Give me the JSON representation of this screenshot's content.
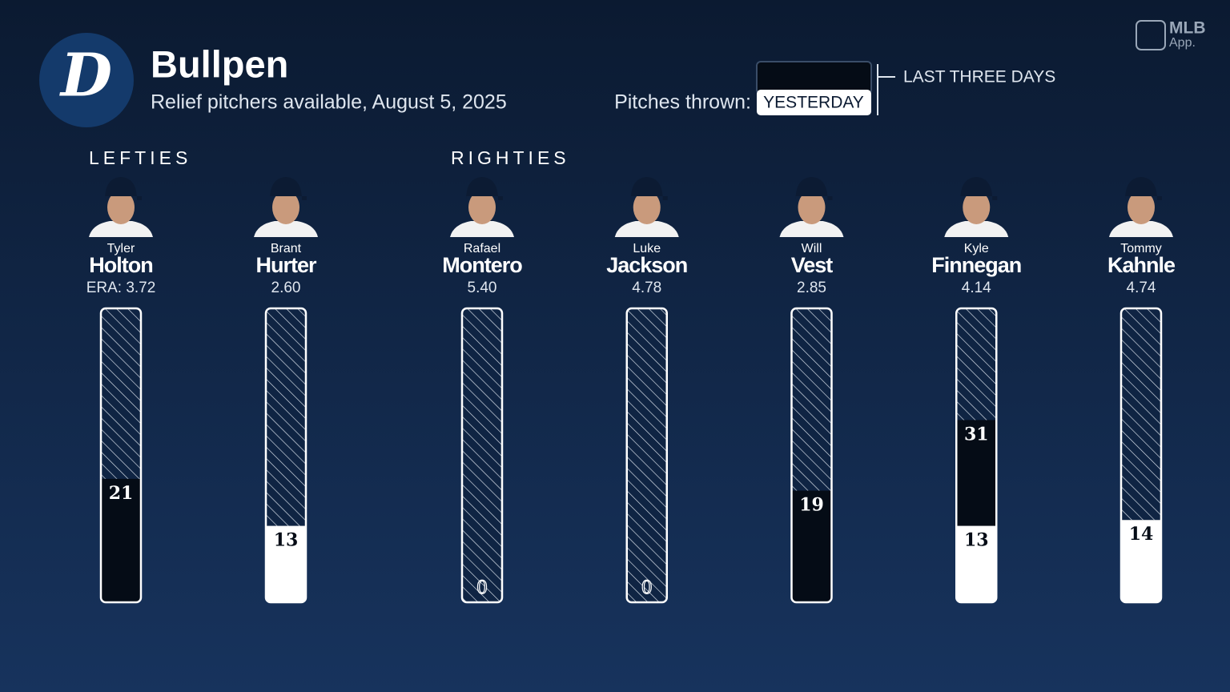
{
  "header": {
    "logo_letter": "D",
    "title": "Bullpen",
    "subtitle": "Relief pitchers available, August 5, 2025",
    "toggle_label": "Pitches thrown:",
    "brand": "MLB",
    "brand_sub": "App."
  },
  "chart_data": {
    "type": "bar",
    "era_label": "ERA:",
    "groups": [
      {
        "label": "LEFTIES",
        "first_names": [
          "Tyler",
          "Brant"
        ],
        "categories": [
          "Holton",
          "Hurter"
        ],
        "era": [
          "3.72",
          "2.60"
        ]
      },
      {
        "label": "RIGHTIES",
        "first_names": [
          "Rafael",
          "Luke",
          "Will",
          "Kyle",
          "Tommy"
        ],
        "categories": [
          "Montero",
          "Jackson",
          "Vest",
          "Finnegan",
          "Kahnle"
        ],
        "era": [
          "5.40",
          "4.78",
          "2.85",
          "4.14",
          "4.74"
        ]
      }
    ],
    "series": [
      {
        "name": "LAST THREE DAYS",
        "color": "#050c16",
        "values": [
          21,
          13,
          0,
          0,
          19,
          31,
          14
        ]
      },
      {
        "name": "YESTERDAY",
        "color": "#ffffff",
        "values": [
          0,
          13,
          0,
          0,
          0,
          13,
          14
        ]
      }
    ],
    "ylim": [
      0,
      50
    ]
  }
}
